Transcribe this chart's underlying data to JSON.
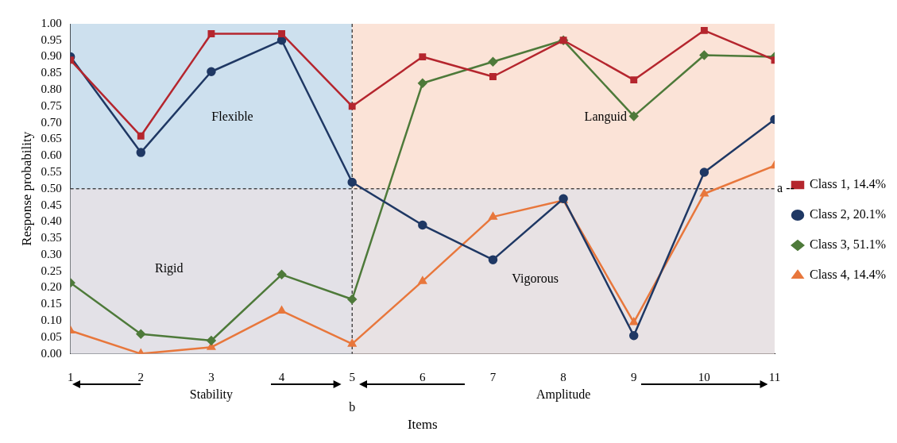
{
  "chart_data": {
    "type": "line",
    "xlabel": "Items",
    "ylabel": "Response probability",
    "x": [
      1,
      2,
      3,
      4,
      5,
      6,
      7,
      8,
      9,
      10,
      11
    ],
    "xlim": [
      1,
      11
    ],
    "xticks": [
      1,
      2,
      3,
      4,
      5,
      6,
      7,
      8,
      9,
      10,
      11
    ],
    "ylim": [
      0,
      1
    ],
    "yticks": [
      {
        "value": 0,
        "label": "0.00"
      },
      {
        "value": 0.05,
        "label": "0.05"
      },
      {
        "value": 0.1,
        "label": "0.10"
      },
      {
        "value": 0.15,
        "label": "0.15"
      },
      {
        "value": 0.2,
        "label": "0.20"
      },
      {
        "value": 0.25,
        "label": "0.25"
      },
      {
        "value": 0.3,
        "label": "0.30"
      },
      {
        "value": 0.35,
        "label": "0.35"
      },
      {
        "value": 0.4,
        "label": "0.40"
      },
      {
        "value": 0.45,
        "label": "0.45"
      },
      {
        "value": 0.5,
        "label": "0.50"
      },
      {
        "value": 0.55,
        "label": "0.55"
      },
      {
        "value": 0.6,
        "label": "0.60"
      },
      {
        "value": 0.65,
        "label": "0.65"
      },
      {
        "value": 0.7,
        "label": "0.70"
      },
      {
        "value": 0.75,
        "label": "0.75"
      },
      {
        "value": 0.8,
        "label": "0.80"
      },
      {
        "value": 0.85,
        "label": "0.85"
      },
      {
        "value": 0.9,
        "label": "0.90"
      },
      {
        "value": 0.95,
        "label": "0.95"
      },
      {
        "value": 1,
        "label": "1.00"
      }
    ],
    "series": [
      {
        "name": "Class 1, 14.4%",
        "color": "#b5262e",
        "marker": "square",
        "values": [
          0.89,
          0.66,
          0.97,
          0.97,
          0.75,
          0.9,
          0.84,
          0.95,
          0.83,
          0.98,
          0.89
        ]
      },
      {
        "name": "Class 2, 20.1%",
        "color": "#1f3864",
        "marker": "circle",
        "values": [
          0.9,
          0.61,
          0.855,
          0.95,
          0.52,
          0.39,
          0.285,
          0.47,
          0.055,
          0.55,
          0.71
        ]
      },
      {
        "name": "Class 3, 51.1%",
        "color": "#4e7a3a",
        "marker": "diamond",
        "values": [
          0.215,
          0.06,
          0.04,
          0.24,
          0.165,
          0.82,
          0.885,
          0.95,
          0.72,
          0.905,
          0.9
        ]
      },
      {
        "name": "Class 4, 14.4%",
        "color": "#e8773c",
        "marker": "triangle",
        "values": [
          0.07,
          0.0,
          0.02,
          0.13,
          0.03,
          0.22,
          0.415,
          0.465,
          0.095,
          0.485,
          0.57
        ]
      }
    ],
    "bands": [
      {
        "axis": "x",
        "from": 1,
        "to": 5,
        "color": "#cde0ee"
      },
      {
        "axis": "x",
        "from": 5,
        "to": 11,
        "color": "#fbe3d7"
      },
      {
        "axis": "y",
        "from": 0,
        "to": 0.5,
        "color": "#e5e1e6"
      }
    ],
    "ref_lines": [
      {
        "axis": "x",
        "value": 5,
        "line_style": "dashed"
      },
      {
        "axis": "y",
        "value": 0.5,
        "line_style": "dashed"
      }
    ],
    "annotations": [
      "Flexible",
      "Languid",
      "Rigid",
      "Vigorous",
      "Stability",
      "Amplitude",
      "a --",
      "b"
    ],
    "grid": false,
    "legend": "right"
  }
}
